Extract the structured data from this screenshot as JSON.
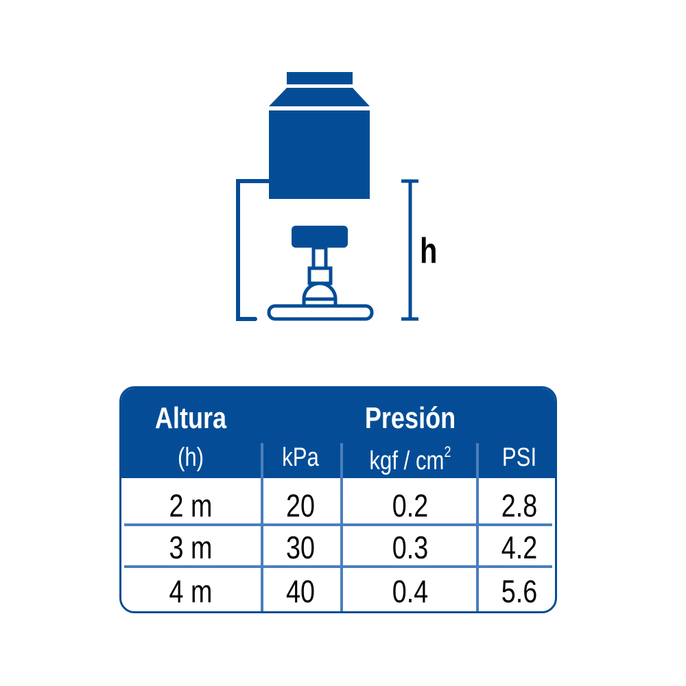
{
  "colors": {
    "primary": "#044d96",
    "divider": "#4b7fbd"
  },
  "diagram": {
    "height_label": "h"
  },
  "table": {
    "header": {
      "height": "Altura",
      "height_sub": "(h)",
      "pressure": "Presión",
      "units": [
        "kPa",
        "kgf / cm",
        "PSI"
      ],
      "unit_superscript": "2"
    },
    "rows": [
      {
        "height": "2 m",
        "kpa": "20",
        "kgf": "0.2",
        "psi": "2.8"
      },
      {
        "height": "3 m",
        "kpa": "30",
        "kgf": "0.3",
        "psi": "4.2"
      },
      {
        "height": "4 m",
        "kpa": "40",
        "kgf": "0.4",
        "psi": "5.6"
      }
    ]
  }
}
